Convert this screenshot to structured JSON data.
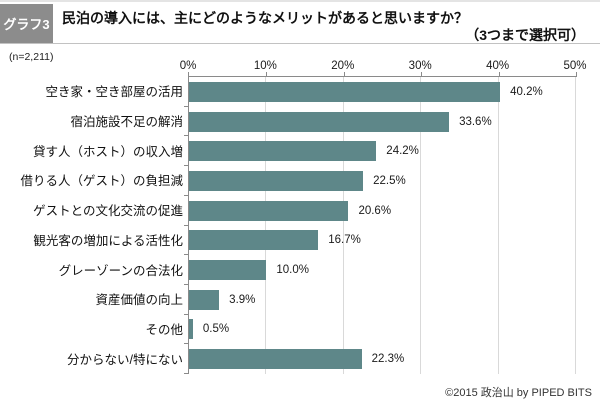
{
  "header": {
    "badge_label": "グラフ3",
    "title": "民泊の導入には、主にどのようなメリットがあると思いますか？",
    "subtitle": "（3つまで選択可）"
  },
  "sample_note": "(n=2,211)",
  "footer": {
    "credit": "©2015 政治山 by PIPED BITS"
  },
  "colors": {
    "bar": "#5e8789",
    "badge_bg": "#8c8c8c",
    "badge_text": "#ffffff",
    "gridline": "#d9d9d9",
    "axis": "#8a8a8a",
    "separator": "#c2c2c2"
  },
  "chart_data": {
    "type": "bar",
    "orientation": "horizontal",
    "title": "民泊の導入には、主にどのようなメリットがあると思いますか？（3つまで選択可）",
    "sample_size": "(n=2,211)",
    "categories": [
      "空き家・空き部屋の活用",
      "宿泊施設不足の解消",
      "貸す人（ホスト）の収入増",
      "借りる人（ゲスト）の負担減",
      "ゲストとの文化交流の促進",
      "観光客の増加による活性化",
      "グレーゾーンの合法化",
      "資産価値の向上",
      "その他",
      "分からない/特にない"
    ],
    "values": [
      40.2,
      33.6,
      24.2,
      22.5,
      20.6,
      16.7,
      10.0,
      3.9,
      0.5,
      22.3
    ],
    "value_labels": [
      "40.2%",
      "33.6%",
      "24.2%",
      "22.5%",
      "20.6%",
      "16.7%",
      "10.0%",
      "3.9%",
      "0.5%",
      "22.3%"
    ],
    "x_axis": {
      "position": "top",
      "min": 0,
      "max": 50,
      "tick_step": 10,
      "tick_labels": [
        "0%",
        "10%",
        "20%",
        "30%",
        "40%",
        "50%"
      ]
    },
    "grid": true,
    "legend": false
  }
}
